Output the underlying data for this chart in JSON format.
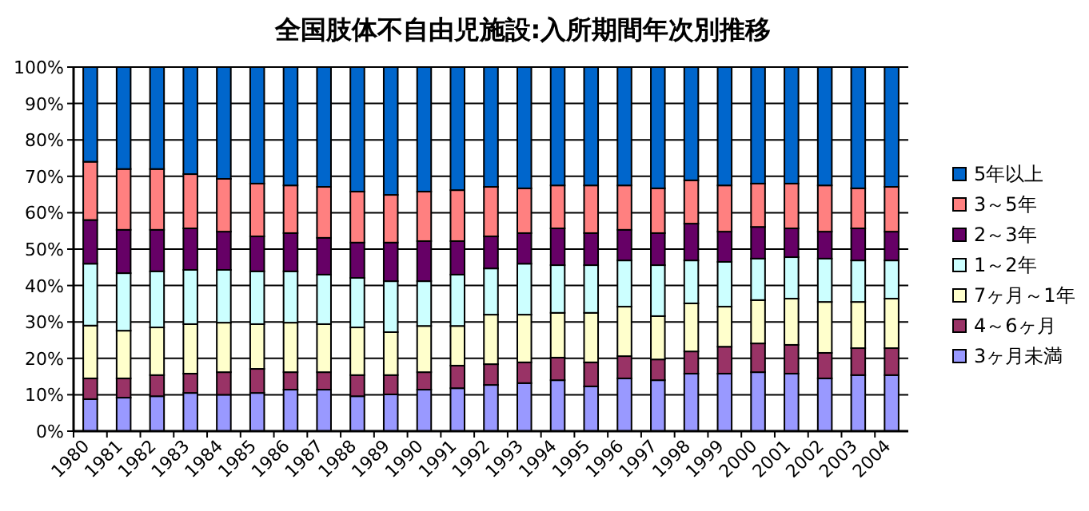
{
  "chart_data": {
    "type": "bar",
    "stacked": true,
    "title": "全国肢体不自由児施設:入所期間年次別推移",
    "categories": [
      "1980",
      "1981",
      "1982",
      "1983",
      "1984",
      "1985",
      "1986",
      "1987",
      "1988",
      "1989",
      "1990",
      "1991",
      "1992",
      "1993",
      "1994",
      "1995",
      "1996",
      "1997",
      "1998",
      "1999",
      "2000",
      "2001",
      "2002",
      "2003",
      "2004"
    ],
    "series": [
      {
        "name": "3ヶ月未満",
        "color": "#9999ff",
        "values": [
          8.8,
          9.2,
          9.6,
          10.5,
          10,
          10.5,
          11.4,
          11.4,
          9.6,
          10.1,
          11.4,
          11.8,
          12.7,
          13.2,
          14,
          12.3,
          14.5,
          14,
          15.8,
          15.8,
          16.2,
          15.8,
          14.5,
          15.4,
          15.4
        ]
      },
      {
        "name": "4～6ヶ月",
        "color": "#993366",
        "values": [
          5.7,
          5.3,
          5.8,
          5.3,
          6.2,
          6.6,
          4.8,
          4.8,
          5.8,
          5.3,
          4.8,
          6.2,
          5.7,
          5.7,
          6.2,
          6.6,
          6.1,
          5.7,
          6.1,
          7.4,
          7.9,
          7.9,
          7,
          7.4,
          7.4
        ]
      },
      {
        "name": "7ヶ月～1年",
        "color": "#ffffcc",
        "values": [
          14.5,
          13.1,
          13.1,
          13.6,
          13.6,
          12.3,
          13.6,
          13.2,
          13.1,
          11.8,
          12.7,
          10.9,
          13.6,
          13.1,
          12.3,
          13.6,
          13.6,
          11.9,
          13.2,
          11,
          11.9,
          12.7,
          14,
          12.7,
          13.6
        ]
      },
      {
        "name": "1～2年",
        "color": "#ccffff",
        "values": [
          17,
          15.8,
          15.4,
          14.9,
          14.5,
          14.5,
          14.1,
          13.6,
          13.6,
          14,
          12.3,
          14.1,
          12.7,
          14,
          13.1,
          13.1,
          12.7,
          14,
          11.8,
          12.3,
          11.4,
          11.4,
          11.9,
          11.4,
          10.5
        ]
      },
      {
        "name": "2～3年",
        "color": "#660066",
        "values": [
          12,
          11.9,
          11.4,
          11.4,
          10.5,
          9.6,
          10.5,
          10.1,
          9.7,
          10.6,
          11,
          9.2,
          8.8,
          8.4,
          10.1,
          8.8,
          8.4,
          8.8,
          10.1,
          8.3,
          8.7,
          7.9,
          7.4,
          8.8,
          7.9
        ]
      },
      {
        "name": "3～5年",
        "color": "#ff8080",
        "values": [
          16,
          16.7,
          16.7,
          14.9,
          14.5,
          14.5,
          13.1,
          14,
          14,
          13.1,
          13.6,
          14,
          13.6,
          12.3,
          11.8,
          13.1,
          12.2,
          12.3,
          11.9,
          12.7,
          11.9,
          12.3,
          12.7,
          11,
          12.3
        ]
      },
      {
        "name": "5年以上",
        "color": "#0066cc",
        "values": [
          26,
          28,
          28,
          29.4,
          30.7,
          32,
          32.5,
          32.9,
          34.2,
          35.1,
          34.2,
          33.8,
          32.9,
          33.3,
          32.5,
          32.5,
          32.5,
          33.3,
          31.1,
          32.5,
          32,
          32,
          32.5,
          33.3,
          32.9
        ]
      }
    ],
    "ylim": [
      0,
      100
    ],
    "yticks": [
      {
        "value": 0,
        "label": "0%"
      },
      {
        "value": 10,
        "label": "10%"
      },
      {
        "value": 20,
        "label": "20%"
      },
      {
        "value": 30,
        "label": "30%"
      },
      {
        "value": 40,
        "label": "40%"
      },
      {
        "value": 50,
        "label": "50%"
      },
      {
        "value": 60,
        "label": "60%"
      },
      {
        "value": 70,
        "label": "70%"
      },
      {
        "value": 80,
        "label": "80%"
      },
      {
        "value": 90,
        "label": "90%"
      },
      {
        "value": 100,
        "label": "100%"
      }
    ],
    "grid": "y",
    "legend": "right"
  }
}
